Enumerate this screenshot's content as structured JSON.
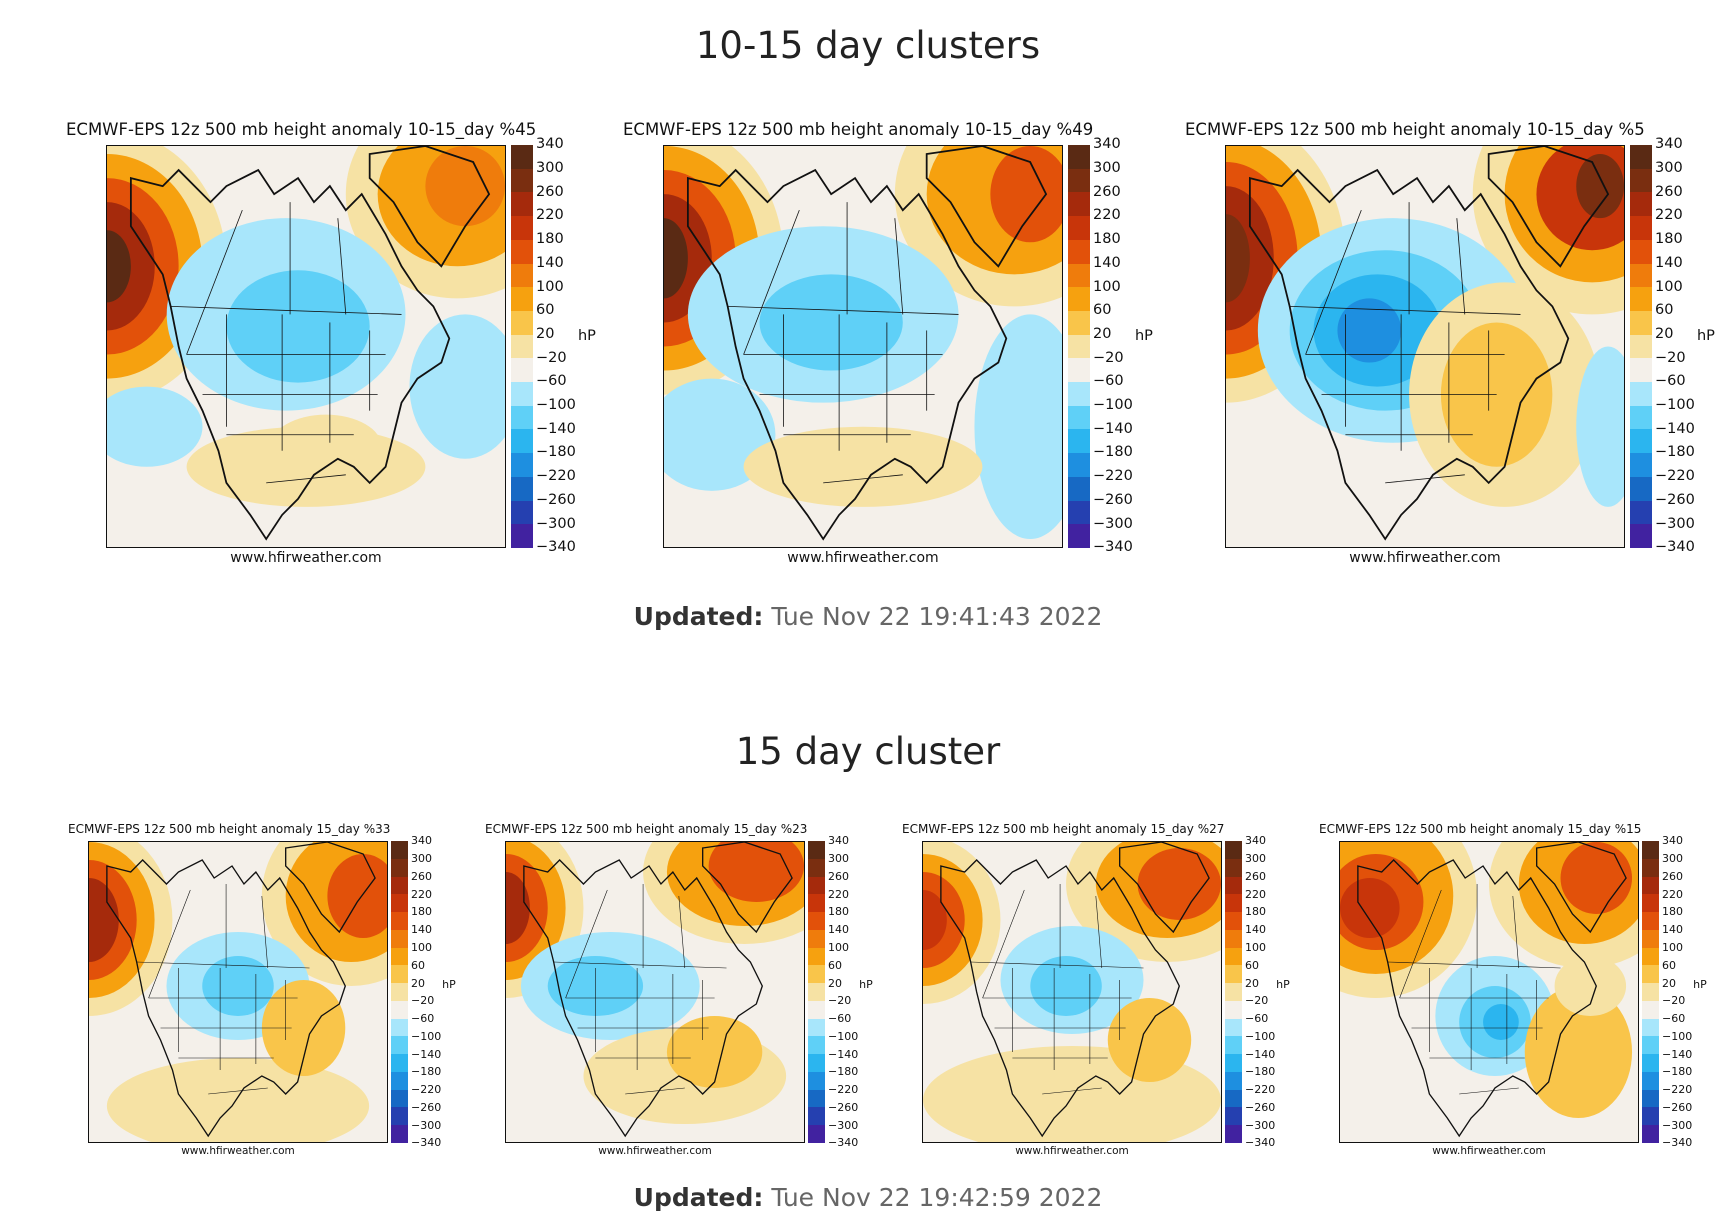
{
  "sections": [
    {
      "title": "10-15 day clusters",
      "updated_label": "Updated:",
      "updated_value": "Tue Nov 22 19:41:43 2022",
      "panels": [
        {
          "title": "ECMWF-EPS 12z 500 mb height anomaly 10-15_day %45",
          "credit": "www.hfirweather.com",
          "unit": "hP"
        },
        {
          "title": "ECMWF-EPS 12z 500 mb height anomaly 10-15_day %49",
          "credit": "www.hfirweather.com",
          "unit": "hP"
        },
        {
          "title": "ECMWF-EPS 12z 500 mb height anomaly 10-15_day %5",
          "credit": "www.hfirweather.com",
          "unit": "hP"
        }
      ]
    },
    {
      "title": "15 day cluster",
      "updated_label": "Updated:",
      "updated_value": "Tue Nov 22 19:42:59 2022",
      "panels": [
        {
          "title": "ECMWF-EPS 12z 500 mb height anomaly 15_day %33",
          "credit": "www.hfirweather.com",
          "unit": "hP"
        },
        {
          "title": "ECMWF-EPS 12z 500 mb height anomaly 15_day %23",
          "credit": "www.hfirweather.com",
          "unit": "hP"
        },
        {
          "title": "ECMWF-EPS 12z 500 mb height anomaly 15_day %27",
          "credit": "www.hfirweather.com",
          "unit": "hP"
        },
        {
          "title": "ECMWF-EPS 12z 500 mb height anomaly 15_day %15",
          "credit": "www.hfirweather.com",
          "unit": "hP"
        }
      ]
    }
  ],
  "colorbar": {
    "ticks": [
      "340",
      "300",
      "260",
      "220",
      "180",
      "140",
      "100",
      "60",
      "20",
      "−20",
      "−60",
      "−100",
      "−140",
      "−180",
      "−220",
      "−260",
      "−300",
      "−340"
    ],
    "colors": [
      "#5a2a14",
      "#7a2e10",
      "#a52a0c",
      "#c8350a",
      "#e2510a",
      "#ef7c0c",
      "#f6a10f",
      "#f9c54a",
      "#f6e2a4",
      "#f4f0ea",
      "#a8e6fb",
      "#5fd0f7",
      "#2bb5ef",
      "#1e8fe0",
      "#1769c4",
      "#2540b0",
      "#4122a0",
      "#66128a"
    ]
  },
  "maps": {
    "colors": {
      "ocean_neutral": "#f4f0ea",
      "coast": "#111111"
    }
  }
}
